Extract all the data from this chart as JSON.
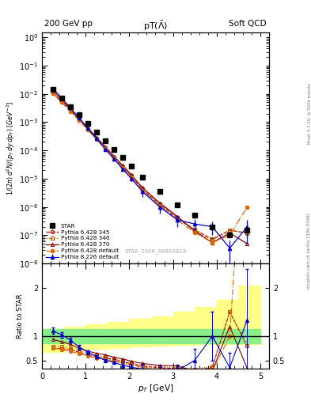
{
  "header_left": "200 GeV pp",
  "header_right": "Soft QCD",
  "watermark": "STAR_2006_S6860818",
  "right_label": "Rivet 3.1.10, ≥ 500k events",
  "right_label2": "mcplots.cern.ch [arXiv:1306.3436]",
  "star_pt": [
    0.25,
    0.45,
    0.65,
    0.85,
    1.05,
    1.25,
    1.45,
    1.65,
    1.85,
    2.05,
    2.3,
    2.7,
    3.1,
    3.5,
    3.9,
    4.3,
    4.7
  ],
  "star_val": [
    0.014,
    0.007,
    0.0035,
    0.0018,
    0.0009,
    0.00045,
    0.00022,
    0.00011,
    5.5e-05,
    2.8e-05,
    1.1e-05,
    3.5e-06,
    1.2e-06,
    5e-07,
    2e-07,
    1e-07,
    1.5e-07
  ],
  "star_err": [
    0.0008,
    0.0004,
    0.0002,
    0.0001,
    5e-05,
    2.5e-05,
    1.2e-05,
    6e-06,
    3e-06,
    1.5e-06,
    6e-07,
    2e-07,
    8e-08,
    4e-08,
    2e-08,
    1.5e-08,
    4e-08
  ],
  "py345_pt": [
    0.25,
    0.45,
    0.65,
    0.85,
    1.05,
    1.25,
    1.45,
    1.65,
    1.85,
    2.05,
    2.3,
    2.7,
    3.1,
    3.5,
    3.9,
    4.3,
    4.7
  ],
  "py345_val": [
    0.0105,
    0.0052,
    0.0025,
    0.0012,
    0.00055,
    0.000255,
    0.00012,
    5.6e-05,
    2.6e-05,
    1.2e-05,
    4.2e-06,
    1.2e-06,
    4e-07,
    1.5e-07,
    7e-08,
    1.5e-07,
    1.2e-07
  ],
  "py346_pt": [
    0.25,
    0.45,
    0.65,
    0.85,
    1.05,
    1.25,
    1.45,
    1.65,
    1.85,
    2.05,
    2.3,
    2.7,
    3.1,
    3.5,
    3.9,
    4.3,
    4.7
  ],
  "py346_val": [
    0.011,
    0.0055,
    0.0026,
    0.00125,
    0.00058,
    0.00027,
    0.000125,
    5.8e-05,
    2.7e-05,
    1.25e-05,
    4.4e-06,
    1.25e-06,
    4.3e-07,
    1.6e-07,
    7.5e-08,
    1.5e-07,
    1.2e-07
  ],
  "py370_pt": [
    0.25,
    0.45,
    0.65,
    0.85,
    1.05,
    1.25,
    1.45,
    1.65,
    1.85,
    2.05,
    2.3,
    2.7,
    3.1,
    3.5,
    3.9,
    4.3,
    4.7
  ],
  "py370_val": [
    0.013,
    0.0062,
    0.0029,
    0.00135,
    0.00062,
    0.00029,
    0.000135,
    6.2e-05,
    2.9e-05,
    1.35e-05,
    4.8e-06,
    1.38e-06,
    4.6e-07,
    1.4e-07,
    5.5e-08,
    1.2e-07,
    5e-08
  ],
  "pydef_pt": [
    0.25,
    0.45,
    0.65,
    0.85,
    1.05,
    1.25,
    1.45,
    1.65,
    1.85,
    2.05,
    2.3,
    2.7,
    3.1,
    3.5,
    3.9,
    4.3,
    4.7
  ],
  "pydef_val": [
    0.0105,
    0.0051,
    0.0024,
    0.00115,
    0.00053,
    0.000245,
    0.000115,
    5.3e-05,
    2.45e-05,
    1.15e-05,
    3.9e-06,
    1.1e-06,
    3.4e-07,
    1.25e-07,
    5.5e-08,
    1e-07,
    1e-06
  ],
  "py8def_pt": [
    0.25,
    0.45,
    0.65,
    0.85,
    1.05,
    1.25,
    1.45,
    1.65,
    1.85,
    2.05,
    2.3,
    2.7,
    3.1,
    3.5,
    3.9,
    4.3,
    4.7
  ],
  "py8def_val": [
    0.0155,
    0.0072,
    0.0032,
    0.0014,
    0.0006,
    0.00026,
    0.00011,
    5e-05,
    2.2e-05,
    1e-05,
    3.5e-06,
    1e-06,
    3.5e-07,
    2.5e-07,
    2e-07,
    3.5e-08,
    2e-07
  ],
  "py8def_err": [
    0,
    0,
    0,
    0,
    0,
    0,
    0,
    0,
    3e-06,
    2e-06,
    1.2e-06,
    4e-07,
    1.5e-07,
    1.2e-07,
    1e-07,
    3e-08,
    1.5e-07
  ],
  "green_band_edges": [
    0.0,
    0.5,
    1.0,
    1.5,
    2.0,
    2.5,
    3.0,
    3.5,
    4.0,
    4.5,
    5.0
  ],
  "green_band_lo": [
    0.85,
    0.85,
    0.85,
    0.85,
    0.85,
    0.85,
    0.85,
    0.85,
    0.85,
    0.85,
    0.85
  ],
  "green_band_hi": [
    1.15,
    1.15,
    1.15,
    1.15,
    1.15,
    1.15,
    1.15,
    1.15,
    1.15,
    1.15,
    1.15
  ],
  "yellow_band_edges": [
    0.0,
    0.5,
    1.0,
    1.5,
    2.0,
    2.5,
    3.0,
    3.5,
    4.0,
    4.5,
    5.0
  ],
  "yellow_band_lo": [
    0.68,
    0.72,
    0.74,
    0.76,
    0.78,
    0.8,
    0.82,
    0.84,
    0.84,
    0.84,
    0.84
  ],
  "yellow_band_hi": [
    1.15,
    1.2,
    1.25,
    1.3,
    1.35,
    1.4,
    1.5,
    1.6,
    1.75,
    2.05,
    2.15
  ],
  "colors": {
    "star": "#000000",
    "py345": "#cc0000",
    "py346": "#aa5500",
    "py370": "#880000",
    "pydef": "#dd6600",
    "py8def": "#0000cc"
  },
  "xlim": [
    0,
    5.2
  ],
  "ylim_main": [
    1e-08,
    1.5
  ],
  "ylim_ratio": [
    0.33,
    2.5
  ],
  "ratio_yticks": [
    0.5,
    1.0,
    2.0
  ]
}
